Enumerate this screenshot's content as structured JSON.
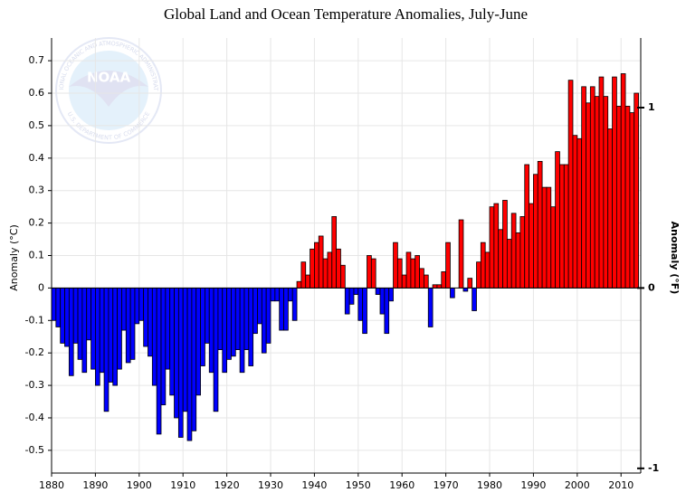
{
  "chart_data": {
    "type": "bar",
    "title": "Global Land and Ocean Temperature Anomalies, July-June",
    "y_label": "Anomaly (°C)",
    "y2_label": "Anomaly (°F)",
    "logo": {
      "name": "NOAA",
      "ring_text": "NATIONAL OCEANIC AND ATMOSPHERIC ADMINISTRATION",
      "ring_text_bottom": "U.S. DEPARTMENT OF COMMERCE"
    },
    "positive_color": "#ff0000",
    "negative_color": "#0000ff",
    "grid": true,
    "xlim": [
      1880,
      2014.5
    ],
    "xticks": [
      1880,
      1890,
      1900,
      1910,
      1920,
      1930,
      1940,
      1950,
      1960,
      1970,
      1980,
      1990,
      2000,
      2010
    ],
    "ylim": [
      -0.57,
      0.77
    ],
    "yticks": [
      -0.5,
      -0.4,
      -0.3,
      -0.2,
      -0.1,
      0,
      0.1,
      0.2,
      0.3,
      0.4,
      0.5,
      0.6,
      0.7
    ],
    "y2lim": [
      -1.026,
      1.386
    ],
    "y2ticks": [
      -1,
      0,
      1
    ],
    "x": [
      1880,
      1881,
      1882,
      1883,
      1884,
      1885,
      1886,
      1887,
      1888,
      1889,
      1890,
      1891,
      1892,
      1893,
      1894,
      1895,
      1896,
      1897,
      1898,
      1899,
      1900,
      1901,
      1902,
      1903,
      1904,
      1905,
      1906,
      1907,
      1908,
      1909,
      1910,
      1911,
      1912,
      1913,
      1914,
      1915,
      1916,
      1917,
      1918,
      1919,
      1920,
      1921,
      1922,
      1923,
      1924,
      1925,
      1926,
      1927,
      1928,
      1929,
      1930,
      1931,
      1932,
      1933,
      1934,
      1935,
      1936,
      1937,
      1938,
      1939,
      1940,
      1941,
      1942,
      1943,
      1944,
      1945,
      1946,
      1947,
      1948,
      1949,
      1950,
      1951,
      1952,
      1953,
      1954,
      1955,
      1956,
      1957,
      1958,
      1959,
      1960,
      1961,
      1962,
      1963,
      1964,
      1965,
      1966,
      1967,
      1968,
      1969,
      1970,
      1971,
      1972,
      1973,
      1974,
      1975,
      1976,
      1977,
      1978,
      1979,
      1980,
      1981,
      1982,
      1983,
      1984,
      1985,
      1986,
      1987,
      1988,
      1989,
      1990,
      1991,
      1992,
      1993,
      1994,
      1995,
      1996,
      1997,
      1998,
      1999,
      2000,
      2001,
      2002,
      2003,
      2004,
      2005,
      2006,
      2007,
      2008,
      2009,
      2010,
      2011,
      2012,
      2013
    ],
    "values": [
      -0.1,
      -0.12,
      -0.17,
      -0.18,
      -0.27,
      -0.17,
      -0.22,
      -0.26,
      -0.16,
      -0.25,
      -0.3,
      -0.26,
      -0.38,
      -0.29,
      -0.3,
      -0.25,
      -0.13,
      -0.23,
      -0.22,
      -0.11,
      -0.1,
      -0.18,
      -0.21,
      -0.3,
      -0.45,
      -0.36,
      -0.25,
      -0.33,
      -0.4,
      -0.46,
      -0.38,
      -0.47,
      -0.44,
      -0.33,
      -0.24,
      -0.17,
      -0.26,
      -0.38,
      -0.19,
      -0.26,
      -0.22,
      -0.21,
      -0.19,
      -0.26,
      -0.19,
      -0.24,
      -0.14,
      -0.11,
      -0.2,
      -0.17,
      -0.04,
      -0.04,
      -0.13,
      -0.13,
      -0.04,
      -0.1,
      0.02,
      0.08,
      0.04,
      0.12,
      0.14,
      0.16,
      0.09,
      0.11,
      0.22,
      0.12,
      0.07,
      -0.08,
      -0.05,
      -0.02,
      -0.1,
      -0.14,
      0.1,
      0.09,
      -0.02,
      -0.08,
      -0.14,
      -0.04,
      0.14,
      0.09,
      0.04,
      0.11,
      0.09,
      0.1,
      0.06,
      0.04,
      -0.12,
      0.01,
      0.01,
      0.05,
      0.14,
      -0.03,
      0.0,
      0.21,
      -0.01,
      0.03,
      -0.07,
      0.08,
      0.14,
      0.11,
      0.25,
      0.26,
      0.18,
      0.27,
      0.15,
      0.23,
      0.17,
      0.22,
      0.38,
      0.26,
      0.35,
      0.39,
      0.31,
      0.31,
      0.25,
      0.42,
      0.38,
      0.38,
      0.64,
      0.47,
      0.46,
      0.62,
      0.57,
      0.62,
      0.59,
      0.65,
      0.59,
      0.49,
      0.65,
      0.56,
      0.66,
      0.56,
      0.54,
      0.6
    ]
  }
}
